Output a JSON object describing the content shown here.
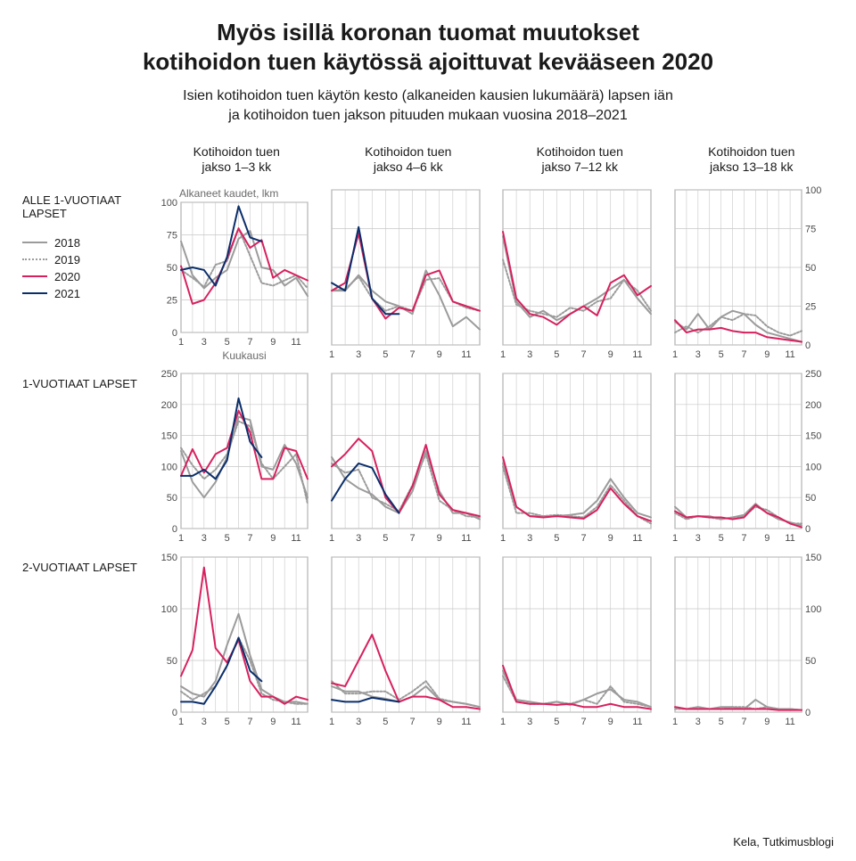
{
  "title_line1": "Myös isillä koronan tuomat muutokset",
  "title_line2": "kotihoidon tuen käytössä ajoittuvat kevääseen 2020",
  "subtitle_line1": "Isien kotihoidon tuen käytön kesto (alkaneiden kausien lukumäärä) lapsen iän",
  "subtitle_line2": "ja kotihoidon tuen jakson pituuden mukaan vuosina 2018–2021",
  "y_axis_top_label": "Alkaneet kaudet, lkm",
  "x_axis_label": "Kuukausi",
  "source": "Kela, Tutkimusblogi",
  "columns": [
    {
      "l1": "Kotihoidon tuen",
      "l2": "jakso 1–3 kk"
    },
    {
      "l1": "Kotihoidon tuen",
      "l2": "jakso 4–6 kk"
    },
    {
      "l1": "Kotihoidon tuen",
      "l2": "jakso 7–12 kk"
    },
    {
      "l1": "Kotihoidon tuen",
      "l2": "jakso 13–18 kk"
    }
  ],
  "rows": [
    "ALLE 1-VUOTIAAT LAPSET",
    "1-VUOTIAAT LAPSET",
    "2-VUOTIAAT LAPSET"
  ],
  "legend": [
    {
      "label": "2018",
      "color": "#9b9b9b",
      "dash": "0"
    },
    {
      "label": "2019",
      "color": "#9b9b9b",
      "dash": "2,2"
    },
    {
      "label": "2020",
      "color": "#d7215e",
      "dash": "0"
    },
    {
      "label": "2021",
      "color": "#0a2e6b",
      "dash": "0"
    }
  ],
  "chart_style": {
    "grid_color": "#c7c7c7",
    "axis_color": "#4a4a4a",
    "background": "#ffffff",
    "line_width": 2,
    "x_ticks": [
      1,
      3,
      5,
      7,
      9,
      11
    ],
    "x_values": [
      1,
      2,
      3,
      4,
      5,
      6,
      7,
      8,
      9,
      10,
      11,
      12
    ]
  },
  "row_scales": [
    {
      "max": 100,
      "step": 25
    },
    {
      "max": 250,
      "step": 50
    },
    {
      "max": 150,
      "step": 50
    }
  ],
  "panels": [
    [
      {
        "s2018": [
          70,
          44,
          34,
          42,
          48,
          72,
          78,
          50,
          48,
          36,
          42,
          28
        ],
        "s2019": [
          48,
          42,
          35,
          52,
          55,
          80,
          59,
          38,
          36,
          40,
          44,
          34
        ],
        "s2020": [
          51,
          22,
          25,
          38,
          57,
          80,
          65,
          71,
          42,
          48,
          44,
          40
        ],
        "s2021": [
          48,
          50,
          48,
          36,
          58,
          97,
          73,
          70
        ]
      },
      {
        "s2018": [
          35,
          35,
          45,
          35,
          28,
          25,
          20,
          48,
          32,
          12,
          18,
          10
        ],
        "s2019": [
          35,
          36,
          44,
          30,
          22,
          25,
          22,
          42,
          43,
          28,
          24,
          22
        ],
        "s2020": [
          35,
          40,
          72,
          30,
          17,
          24,
          22,
          45,
          48,
          28,
          25,
          22
        ],
        "s2021": [
          40,
          35,
          76,
          30,
          20,
          20
        ]
      },
      {
        "s2018": [
          70,
          28,
          18,
          22,
          16,
          20,
          25,
          30,
          36,
          42,
          30,
          20
        ],
        "s2019": [
          55,
          26,
          22,
          20,
          18,
          24,
          22,
          28,
          30,
          42,
          35,
          22
        ],
        "s2020": [
          73,
          30,
          20,
          18,
          13,
          20,
          25,
          19,
          40,
          45,
          32,
          38
        ],
        "s2021": []
      },
      {
        "s2018": [
          15,
          10,
          20,
          10,
          18,
          22,
          20,
          13,
          8,
          6,
          4,
          2
        ],
        "s2019": [
          8,
          12,
          8,
          12,
          18,
          16,
          20,
          19,
          12,
          8,
          6,
          9
        ],
        "s2020": [
          16,
          8,
          10,
          10,
          11,
          9,
          8,
          8,
          5,
          4,
          3,
          2
        ],
        "s2021": []
      }
    ],
    [
      {
        "s2018": [
          125,
          75,
          50,
          75,
          115,
          180,
          175,
          100,
          95,
          135,
          105,
          50
        ],
        "s2019": [
          130,
          102,
          80,
          95,
          120,
          173,
          165,
          105,
          80,
          100,
          120,
          40
        ],
        "s2020": [
          85,
          128,
          90,
          120,
          130,
          190,
          155,
          80,
          80,
          130,
          125,
          80
        ],
        "s2021": [
          85,
          85,
          95,
          80,
          110,
          210,
          140,
          115
        ]
      },
      {
        "s2018": [
          115,
          80,
          65,
          55,
          35,
          25,
          60,
          125,
          60,
          25,
          25,
          15
        ],
        "s2019": [
          105,
          90,
          95,
          50,
          40,
          28,
          70,
          120,
          45,
          30,
          20,
          18
        ],
        "s2020": [
          100,
          120,
          145,
          125,
          50,
          25,
          68,
          135,
          55,
          30,
          25,
          20
        ],
        "s2021": [
          45,
          80,
          105,
          98,
          55,
          25
        ]
      },
      {
        "s2018": [
          105,
          35,
          20,
          20,
          20,
          22,
          25,
          45,
          80,
          50,
          25,
          18
        ],
        "s2019": [
          100,
          25,
          25,
          20,
          22,
          20,
          18,
          35,
          70,
          45,
          20,
          8
        ],
        "s2020": [
          115,
          35,
          20,
          18,
          20,
          18,
          16,
          30,
          65,
          40,
          20,
          12
        ],
        "s2021": []
      },
      {
        "s2018": [
          35,
          18,
          20,
          20,
          15,
          18,
          22,
          40,
          25,
          15,
          10,
          5
        ],
        "s2019": [
          25,
          15,
          20,
          18,
          15,
          18,
          20,
          35,
          30,
          18,
          8,
          8
        ],
        "s2020": [
          28,
          18,
          20,
          18,
          18,
          15,
          18,
          38,
          25,
          18,
          8,
          2
        ],
        "s2021": []
      }
    ],
    [
      {
        "s2018": [
          25,
          18,
          15,
          30,
          65,
          95,
          55,
          22,
          15,
          10,
          10,
          8
        ],
        "s2019": [
          20,
          12,
          18,
          25,
          45,
          72,
          50,
          18,
          12,
          10,
          8,
          8
        ],
        "s2020": [
          35,
          60,
          140,
          62,
          48,
          70,
          30,
          15,
          15,
          8,
          15,
          12
        ],
        "s2021": [
          10,
          10,
          8,
          25,
          45,
          72,
          40,
          30
        ]
      },
      {
        "s2018": [
          25,
          20,
          20,
          15,
          13,
          10,
          15,
          25,
          12,
          10,
          8,
          5
        ],
        "s2019": [
          30,
          18,
          18,
          20,
          20,
          12,
          20,
          30,
          13,
          10,
          8,
          5
        ],
        "s2020": [
          28,
          25,
          50,
          75,
          40,
          10,
          15,
          15,
          12,
          5,
          5,
          3
        ],
        "s2021": [
          12,
          10,
          10,
          14,
          12,
          10
        ]
      },
      {
        "s2018": [
          40,
          12,
          10,
          8,
          10,
          7,
          12,
          18,
          22,
          12,
          10,
          5
        ],
        "s2019": [
          35,
          10,
          8,
          8,
          10,
          8,
          12,
          8,
          25,
          10,
          8,
          5
        ],
        "s2020": [
          45,
          10,
          8,
          8,
          7,
          8,
          5,
          5,
          8,
          5,
          5,
          3
        ],
        "s2021": []
      },
      {
        "s2018": [
          5,
          3,
          5,
          3,
          5,
          5,
          3,
          12,
          5,
          3,
          3,
          2
        ],
        "s2019": [
          3,
          3,
          5,
          3,
          3,
          5,
          5,
          3,
          5,
          3,
          3,
          2
        ],
        "s2020": [
          5,
          3,
          3,
          3,
          3,
          3,
          3,
          3,
          3,
          2,
          2,
          2
        ],
        "s2021": []
      }
    ]
  ]
}
